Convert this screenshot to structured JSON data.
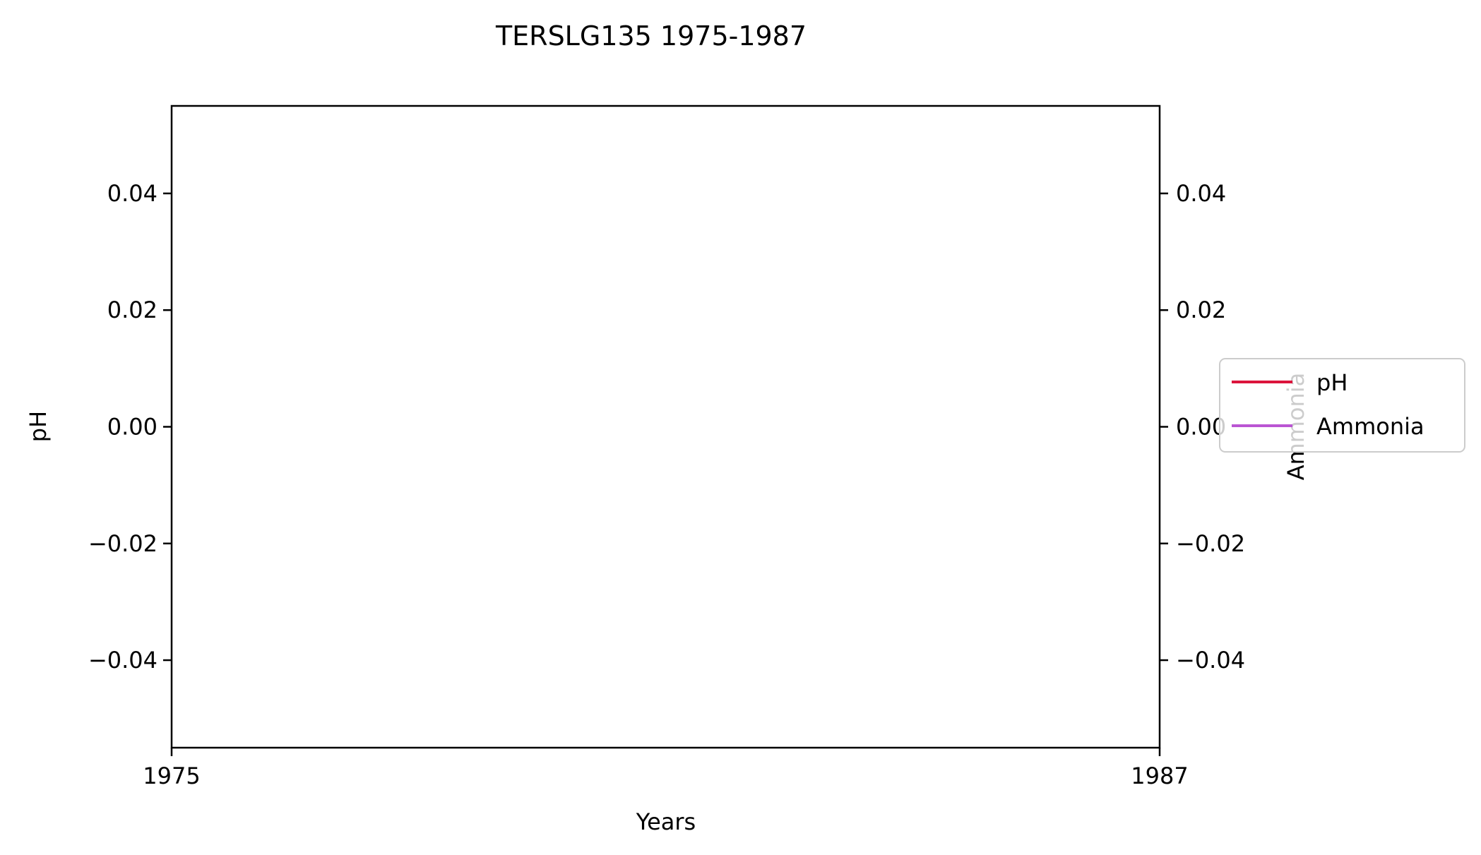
{
  "chart_data": {
    "type": "line",
    "title": "TERSLG135 1975-1987",
    "xlabel": "Years",
    "ylabel_left": "pH",
    "ylabel_right": "Ammonia",
    "xlim": [
      1975,
      1987
    ],
    "x_ticks": [
      "1975",
      "1987"
    ],
    "ylim": [
      -0.055,
      0.055
    ],
    "y_ticks": [
      0.04,
      0.02,
      0.0,
      -0.02,
      -0.04
    ],
    "y_tick_labels": [
      "0.04",
      "0.02",
      "0.00",
      "−0.02",
      "−0.04"
    ],
    "grid": false,
    "legend_position": "right",
    "series": [
      {
        "name": "pH",
        "axis": "left",
        "color": "#dc143c",
        "x": [],
        "values": []
      },
      {
        "name": "Ammonia",
        "axis": "right",
        "color": "#ba55d3",
        "x": [],
        "values": []
      }
    ]
  }
}
